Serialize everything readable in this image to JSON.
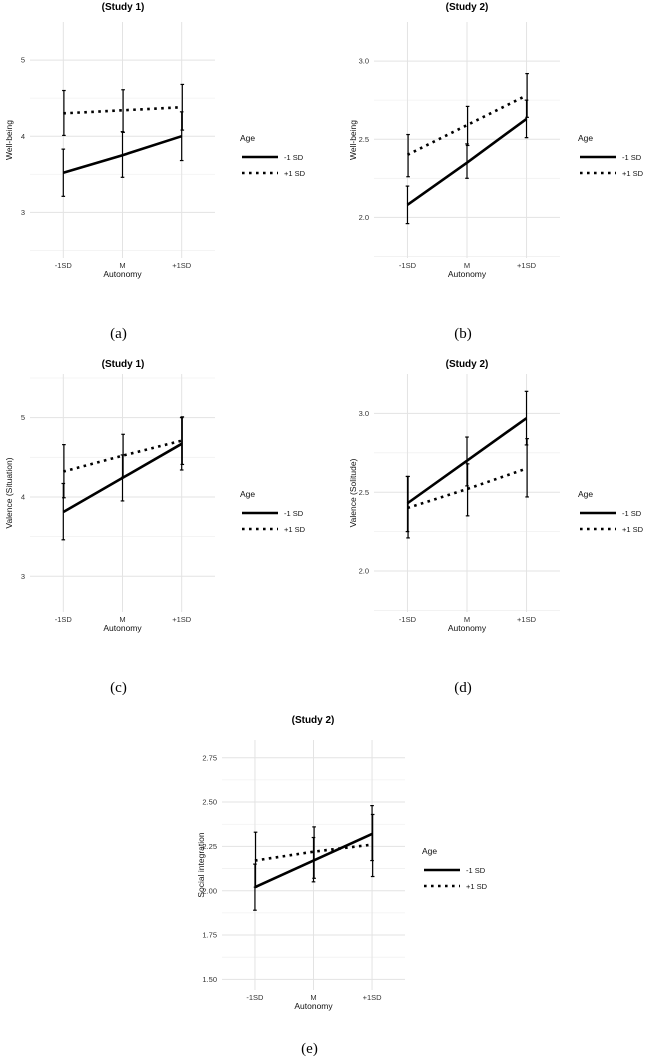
{
  "chart_data": [
    {
      "id": "a",
      "type": "line",
      "title": "(Study 1)",
      "caption": "(a)",
      "xlabel": "Autonomy",
      "ylabel": "Well-being",
      "categories": [
        "-1SD",
        "M",
        "+1SD"
      ],
      "ylim": [
        2.4,
        5.5
      ],
      "yticks": [
        3,
        4,
        5
      ],
      "legend_title": "Age",
      "series": [
        {
          "name": "-1 SD",
          "style": "solid",
          "values": [
            3.52,
            3.75,
            4.0
          ],
          "ci_low": [
            3.21,
            3.46,
            3.68
          ],
          "ci_high": [
            3.83,
            4.06,
            4.32
          ]
        },
        {
          "name": "+1 SD",
          "style": "dotted",
          "values": [
            4.3,
            4.34,
            4.38
          ],
          "ci_low": [
            4.01,
            4.05,
            4.08
          ],
          "ci_high": [
            4.6,
            4.61,
            4.68
          ]
        }
      ]
    },
    {
      "id": "b",
      "type": "line",
      "title": "(Study 2)",
      "caption": "(b)",
      "xlabel": "Autonomy",
      "ylabel": "Well-being",
      "categories": [
        "-1SD",
        "M",
        "+1SD"
      ],
      "ylim": [
        1.74,
        3.25
      ],
      "yticks": [
        "2.0",
        "2.5",
        "3.0"
      ],
      "legend_title": "Age",
      "series": [
        {
          "name": "-1 SD",
          "style": "solid",
          "values": [
            2.08,
            2.35,
            2.63
          ],
          "ci_low": [
            1.96,
            2.25,
            2.51
          ],
          "ci_high": [
            2.2,
            2.47,
            2.75
          ]
        },
        {
          "name": "+1 SD",
          "style": "dotted",
          "values": [
            2.4,
            2.59,
            2.78
          ],
          "ci_low": [
            2.26,
            2.46,
            2.64
          ],
          "ci_high": [
            2.53,
            2.71,
            2.92
          ]
        }
      ]
    },
    {
      "id": "c",
      "type": "line",
      "title": "(Study 1)",
      "caption": "(c)",
      "xlabel": "Autonomy",
      "ylabel": "Valence (Situation)",
      "categories": [
        "-1SD",
        "M",
        "+1SD"
      ],
      "ylim": [
        2.55,
        5.55
      ],
      "yticks": [
        3,
        4,
        5
      ],
      "legend_title": "Age",
      "series": [
        {
          "name": "-1 SD",
          "style": "solid",
          "values": [
            3.81,
            4.24,
            4.67
          ],
          "ci_low": [
            3.46,
            3.95,
            4.34
          ],
          "ci_high": [
            4.17,
            4.53,
            5.0
          ]
        },
        {
          "name": "+1 SD",
          "style": "dotted",
          "values": [
            4.32,
            4.52,
            4.71
          ],
          "ci_low": [
            3.99,
            4.25,
            4.41
          ],
          "ci_high": [
            4.66,
            4.79,
            5.01
          ]
        }
      ]
    },
    {
      "id": "d",
      "type": "line",
      "title": "(Study 2)",
      "caption": "(d)",
      "xlabel": "Autonomy",
      "ylabel": "Valence (Solitude)",
      "categories": [
        "-1SD",
        "M",
        "+1SD"
      ],
      "ylim": [
        1.74,
        3.25
      ],
      "yticks": [
        "2.0",
        "2.5",
        "3.0"
      ],
      "legend_title": "Age",
      "series": [
        {
          "name": "-1 SD",
          "style": "solid",
          "values": [
            2.43,
            2.7,
            2.97
          ],
          "ci_low": [
            2.25,
            2.54,
            2.8
          ],
          "ci_high": [
            2.6,
            2.85,
            3.14
          ]
        },
        {
          "name": "+1 SD",
          "style": "dotted",
          "values": [
            2.4,
            2.52,
            2.65
          ],
          "ci_low": [
            2.21,
            2.35,
            2.47
          ],
          "ci_high": [
            2.6,
            2.68,
            2.84
          ]
        }
      ]
    },
    {
      "id": "e",
      "type": "line",
      "title": "(Study 2)",
      "caption": "(e)",
      "xlabel": "Autonomy",
      "ylabel": "Social integration",
      "categories": [
        "-1SD",
        "M",
        "+1SD"
      ],
      "ylim": [
        1.44,
        2.85
      ],
      "yticks": [
        "1.50",
        "1.75",
        "2.00",
        "2.25",
        "2.50",
        "2.75"
      ],
      "legend_title": "Age",
      "series": [
        {
          "name": "-1 SD",
          "style": "solid",
          "values": [
            2.02,
            2.17,
            2.32
          ],
          "ci_low": [
            1.89,
            2.05,
            2.17
          ],
          "ci_high": [
            2.15,
            2.3,
            2.48
          ]
        },
        {
          "name": "+1 SD",
          "style": "dotted",
          "values": [
            2.17,
            2.22,
            2.26
          ],
          "ci_low": [
            2.02,
            2.07,
            2.08
          ],
          "ci_high": [
            2.33,
            2.36,
            2.43
          ]
        }
      ]
    }
  ],
  "colors": {
    "line": "#000000",
    "grid": "#e3e3e3",
    "background": "#ffffff"
  }
}
